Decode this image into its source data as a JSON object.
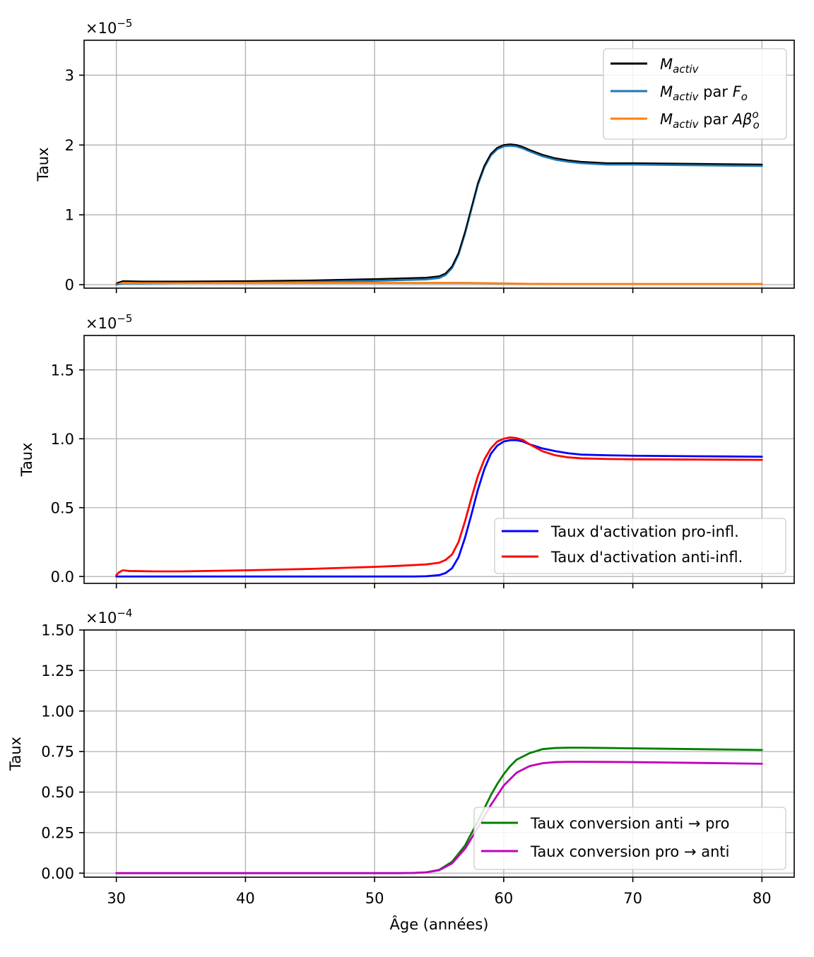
{
  "chart_data": [
    {
      "type": "line",
      "ylabel": "Taux",
      "offset_base": "×10",
      "offset_exp": "−5",
      "scale": 1e-05,
      "xlim": [
        27.5,
        82.5
      ],
      "ylim": [
        -0.05,
        3.5
      ],
      "xticks": [
        30,
        40,
        50,
        60,
        70,
        80
      ],
      "yticks": [
        0,
        1,
        2,
        3
      ],
      "yticklabels": [
        "0",
        "1",
        "2",
        "3"
      ],
      "xticklabels_visible": false,
      "grid": true,
      "legend": {
        "placement": "top-right",
        "entries": [
          {
            "series": 0,
            "label_main": "M",
            "label_sub": "activ",
            "label_rest": "",
            "color": "#000000"
          },
          {
            "series": 1,
            "label_main": "M",
            "label_sub": "activ",
            "label_rest": " par F",
            "label_rest_sub": "o",
            "color": "#1f77b4"
          },
          {
            "series": 2,
            "label_main": "M",
            "label_sub": "activ",
            "label_rest": " par Aβ",
            "label_rest_sub": "o",
            "label_rest_sup": "o",
            "color": "#ff7f0e"
          }
        ]
      },
      "series": [
        {
          "name": "M_activ",
          "color": "#000000",
          "x": [
            30,
            30.5,
            32,
            35,
            40,
            45,
            50,
            52,
            54,
            55,
            55.5,
            56,
            56.5,
            57,
            57.5,
            58,
            58.5,
            59,
            59.5,
            60,
            60.5,
            61,
            61.5,
            62,
            63,
            64,
            65,
            66,
            68,
            70,
            75,
            80
          ],
          "y": [
            0.02,
            0.05,
            0.045,
            0.045,
            0.05,
            0.06,
            0.08,
            0.09,
            0.1,
            0.12,
            0.16,
            0.26,
            0.45,
            0.75,
            1.1,
            1.45,
            1.7,
            1.87,
            1.96,
            2.0,
            2.01,
            2.0,
            1.97,
            1.93,
            1.86,
            1.81,
            1.78,
            1.76,
            1.74,
            1.74,
            1.73,
            1.72
          ]
        },
        {
          "name": "M_activ par F_o",
          "color": "#1f77b4",
          "x": [
            30,
            30.5,
            32,
            35,
            40,
            45,
            50,
            52,
            54,
            55,
            55.5,
            56,
            56.5,
            57,
            57.5,
            58,
            58.5,
            59,
            59.5,
            60,
            60.5,
            61,
            61.5,
            62,
            63,
            64,
            65,
            66,
            68,
            70,
            75,
            80
          ],
          "y": [
            0.0,
            0.02,
            0.02,
            0.025,
            0.03,
            0.04,
            0.055,
            0.065,
            0.075,
            0.095,
            0.14,
            0.24,
            0.43,
            0.73,
            1.08,
            1.43,
            1.68,
            1.85,
            1.94,
            1.98,
            1.99,
            1.98,
            1.95,
            1.91,
            1.84,
            1.79,
            1.76,
            1.74,
            1.72,
            1.72,
            1.71,
            1.7
          ]
        },
        {
          "name": "M_activ par Aβ_o^o",
          "color": "#ff7f0e",
          "x": [
            30,
            30.5,
            35,
            40,
            50,
            55,
            57,
            60,
            62,
            65,
            70,
            80
          ],
          "y": [
            0.02,
            0.025,
            0.025,
            0.025,
            0.025,
            0.025,
            0.025,
            0.018,
            0.012,
            0.01,
            0.01,
            0.01
          ]
        }
      ]
    },
    {
      "type": "line",
      "ylabel": "Taux",
      "offset_base": "×10",
      "offset_exp": "−5",
      "scale": 1e-05,
      "xlim": [
        27.5,
        82.5
      ],
      "ylim": [
        -0.05,
        1.75
      ],
      "xticks": [
        30,
        40,
        50,
        60,
        70,
        80
      ],
      "yticks": [
        0,
        0.5,
        1.0,
        1.5
      ],
      "yticklabels": [
        "0.0",
        "0.5",
        "1.0",
        "1.5"
      ],
      "xticklabels_visible": false,
      "grid": true,
      "legend": {
        "placement": "lower-right",
        "entries": [
          {
            "series": 0,
            "label_main": "Taux d'activation pro-infl.",
            "color": "#0000ff"
          },
          {
            "series": 1,
            "label_main": "Taux d'activation anti-infl.",
            "color": "#ff0000"
          }
        ]
      },
      "series": [
        {
          "name": "Taux d'activation pro-infl.",
          "color": "#0000ff",
          "x": [
            30,
            40,
            50,
            53,
            54,
            55,
            55.5,
            56,
            56.5,
            57,
            57.5,
            58,
            58.5,
            59,
            59.5,
            60,
            60.5,
            61,
            61.5,
            62,
            63,
            64,
            65,
            66,
            68,
            70,
            75,
            80
          ],
          "y": [
            0.0,
            0.0,
            0.0,
            0.0,
            0.002,
            0.01,
            0.025,
            0.06,
            0.14,
            0.28,
            0.45,
            0.63,
            0.78,
            0.89,
            0.95,
            0.98,
            0.99,
            0.99,
            0.98,
            0.96,
            0.93,
            0.91,
            0.895,
            0.885,
            0.88,
            0.877,
            0.873,
            0.87
          ]
        },
        {
          "name": "Taux d'activation anti-infl.",
          "color": "#ff0000",
          "x": [
            30,
            30.2,
            30.5,
            31,
            33,
            35,
            40,
            45,
            50,
            52,
            54,
            55,
            55.5,
            56,
            56.5,
            57,
            57.5,
            58,
            58.5,
            59,
            59.5,
            60,
            60.5,
            61,
            61.5,
            62,
            63,
            64,
            65,
            66,
            68,
            70,
            75,
            80
          ],
          "y": [
            0.01,
            0.03,
            0.045,
            0.04,
            0.037,
            0.037,
            0.045,
            0.055,
            0.07,
            0.078,
            0.088,
            0.1,
            0.12,
            0.16,
            0.25,
            0.4,
            0.57,
            0.73,
            0.85,
            0.93,
            0.98,
            1.0,
            1.01,
            1.005,
            0.99,
            0.96,
            0.91,
            0.88,
            0.865,
            0.858,
            0.853,
            0.851,
            0.849,
            0.847
          ]
        }
      ]
    },
    {
      "type": "line",
      "ylabel": "Taux",
      "xlabel": "Âge (années)",
      "offset_base": "×10",
      "offset_exp": "−4",
      "scale": 0.0001,
      "xlim": [
        27.5,
        82.5
      ],
      "ylim": [
        -0.025,
        1.5
      ],
      "xticks": [
        30,
        40,
        50,
        60,
        70,
        80
      ],
      "xticklabels": [
        "30",
        "40",
        "50",
        "60",
        "70",
        "80"
      ],
      "yticks": [
        0,
        0.25,
        0.5,
        0.75,
        1.0,
        1.25,
        1.5
      ],
      "yticklabels": [
        "0.00",
        "0.25",
        "0.50",
        "0.75",
        "1.00",
        "1.25",
        "1.50"
      ],
      "xticklabels_visible": true,
      "grid": true,
      "legend": {
        "placement": "lower-right",
        "entries": [
          {
            "series": 0,
            "label_main": "Taux conversion anti → pro",
            "color": "#008000"
          },
          {
            "series": 1,
            "label_main": "Taux conversion pro → anti",
            "color": "#bf00bf"
          }
        ]
      },
      "series": [
        {
          "name": "Taux conversion anti → pro",
          "color": "#008000",
          "x": [
            30,
            40,
            50,
            52,
            53,
            54,
            55,
            56,
            57,
            58,
            58.5,
            59,
            59.5,
            60,
            60.5,
            61,
            62,
            63,
            64,
            65,
            66,
            68,
            70,
            75,
            80
          ],
          "y": [
            0.0,
            0.0,
            0.0,
            0.0,
            0.001,
            0.005,
            0.02,
            0.07,
            0.17,
            0.32,
            0.4,
            0.48,
            0.55,
            0.61,
            0.66,
            0.7,
            0.74,
            0.765,
            0.772,
            0.774,
            0.774,
            0.772,
            0.77,
            0.765,
            0.76
          ]
        },
        {
          "name": "Taux conversion pro → anti",
          "color": "#bf00bf",
          "x": [
            30,
            40,
            50,
            52,
            53,
            54,
            55,
            56,
            57,
            58,
            58.5,
            59,
            59.5,
            60,
            60.5,
            61,
            62,
            63,
            64,
            65,
            66,
            68,
            70,
            75,
            80
          ],
          "y": [
            0.0,
            0.0,
            0.0,
            0.0,
            0.001,
            0.005,
            0.018,
            0.06,
            0.15,
            0.28,
            0.35,
            0.42,
            0.48,
            0.54,
            0.58,
            0.62,
            0.66,
            0.678,
            0.685,
            0.687,
            0.687,
            0.686,
            0.685,
            0.68,
            0.675
          ]
        }
      ]
    }
  ]
}
